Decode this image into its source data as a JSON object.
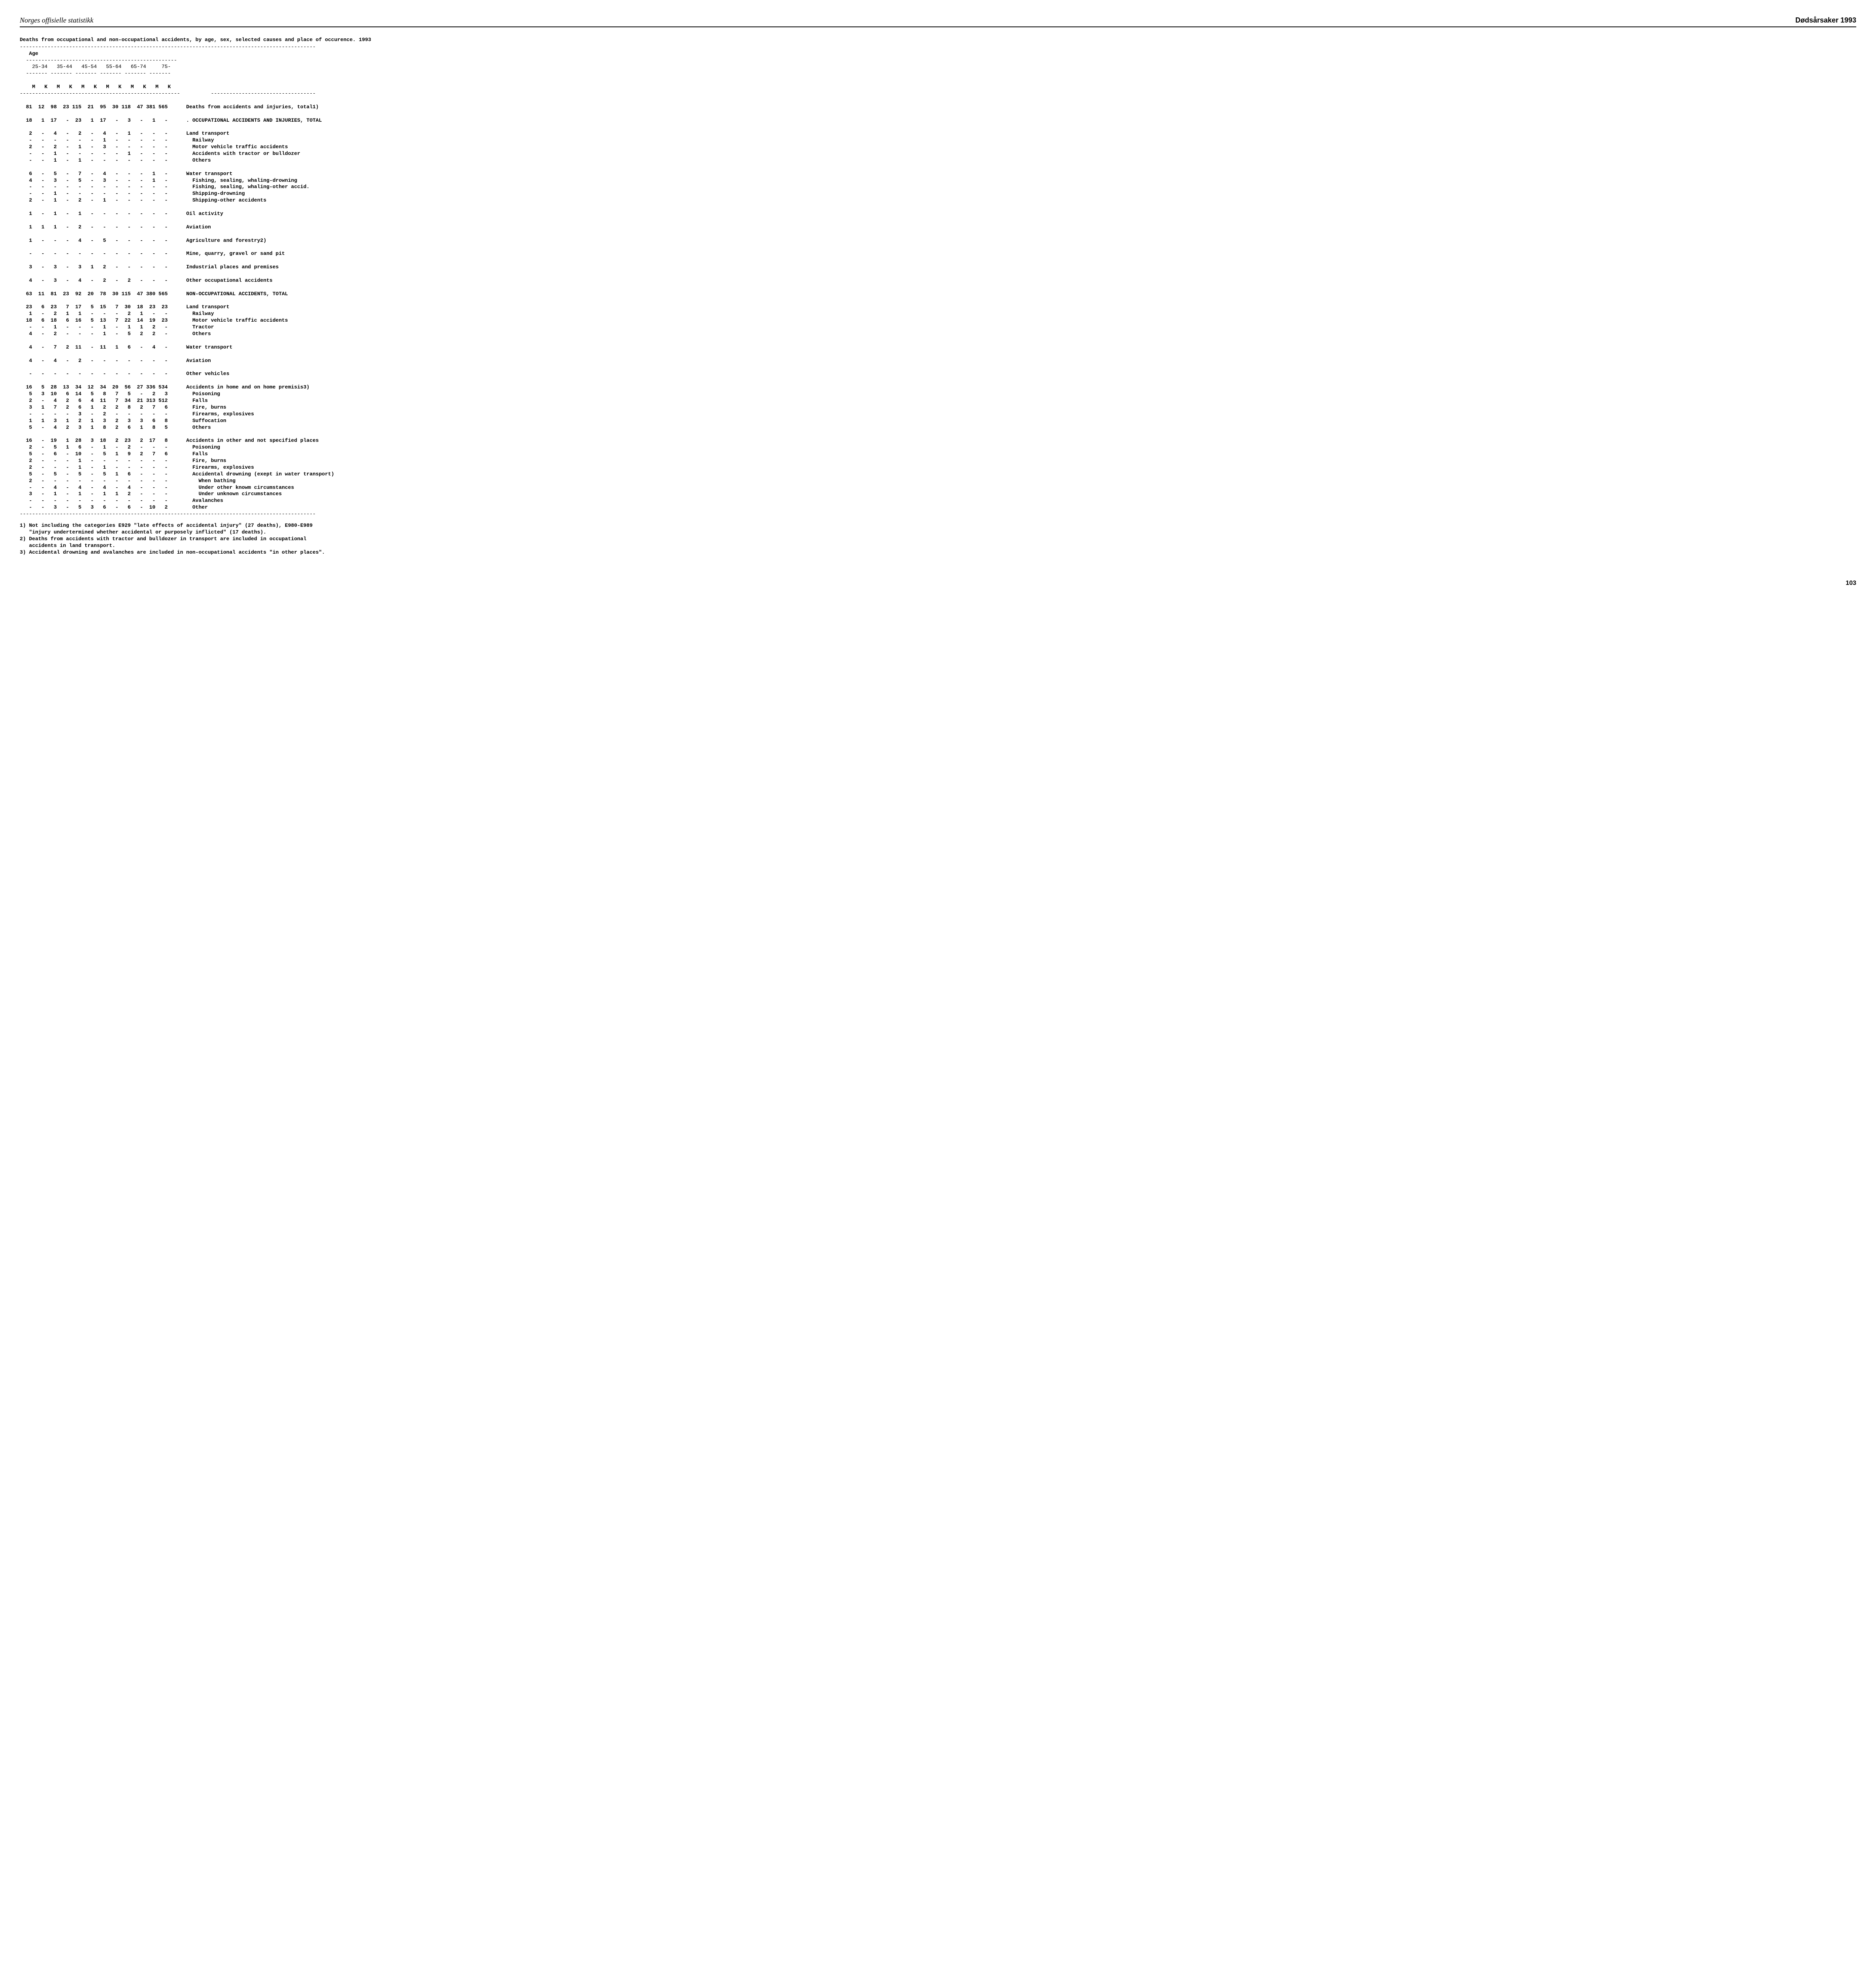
{
  "header": {
    "left": "Norges offisielle statistikk",
    "right": "Dødsårsaker 1993"
  },
  "title": "Deaths from occupational and non-occupational accidents, by age, sex, selected causes and place of occurence. 1993",
  "page_number": "103",
  "age_header": "Age",
  "age_groups": [
    "25-34",
    "35-44",
    "45-54",
    "55-64",
    "65-74",
    "75-"
  ],
  "sex_labels": [
    "M",
    "K",
    "M",
    "K",
    "M",
    "K",
    "M",
    "K",
    "M",
    "K",
    "M",
    "K"
  ],
  "rows": [
    {
      "v": [
        "81",
        "12",
        "98",
        "23",
        "115",
        "21",
        "95",
        "30",
        "118",
        "47",
        "381",
        "565"
      ],
      "label": "Deaths from accidents and injuries, total1)"
    },
    {
      "v": [
        "18",
        "1",
        "17",
        "-",
        "23",
        "1",
        "17",
        "-",
        "3",
        "-",
        "1",
        "-"
      ],
      "label": ". OCCUPATIONAL ACCIDENTS AND INJURIES, TOTAL"
    },
    {
      "v": [
        "2",
        "-",
        "4",
        "-",
        "2",
        "-",
        "4",
        "-",
        "1",
        "-",
        "-",
        "-"
      ],
      "label": "Land transport"
    },
    {
      "v": [
        "-",
        "-",
        "-",
        "-",
        "-",
        "-",
        "1",
        "-",
        "-",
        "-",
        "-",
        "-"
      ],
      "label": "  Railway"
    },
    {
      "v": [
        "2",
        "-",
        "2",
        "-",
        "1",
        "-",
        "3",
        "-",
        "-",
        "-",
        "-",
        "-"
      ],
      "label": "  Motor vehicle traffic accidents"
    },
    {
      "v": [
        "-",
        "-",
        "1",
        "-",
        "-",
        "-",
        "-",
        "-",
        "1",
        "-",
        "-",
        "-"
      ],
      "label": "  Accidents with tractor or bulldozer"
    },
    {
      "v": [
        "-",
        "-",
        "1",
        "-",
        "1",
        "-",
        "-",
        "-",
        "-",
        "-",
        "-",
        "-"
      ],
      "label": "  Others"
    },
    {
      "v": [
        "6",
        "-",
        "5",
        "-",
        "7",
        "-",
        "4",
        "-",
        "-",
        "-",
        "1",
        "-"
      ],
      "label": "Water transport"
    },
    {
      "v": [
        "4",
        "-",
        "3",
        "-",
        "5",
        "-",
        "3",
        "-",
        "-",
        "-",
        "1",
        "-"
      ],
      "label": "  Fishing, sealing, whaling-drowning"
    },
    {
      "v": [
        "-",
        "-",
        "-",
        "-",
        "-",
        "-",
        "-",
        "-",
        "-",
        "-",
        "-",
        "-"
      ],
      "label": "  Fishing, sealing, whaling-other accid."
    },
    {
      "v": [
        "-",
        "-",
        "1",
        "-",
        "-",
        "-",
        "-",
        "-",
        "-",
        "-",
        "-",
        "-"
      ],
      "label": "  Shipping-drowning"
    },
    {
      "v": [
        "2",
        "-",
        "1",
        "-",
        "2",
        "-",
        "1",
        "-",
        "-",
        "-",
        "-",
        "-"
      ],
      "label": "  Shipping-other accidents"
    },
    {
      "v": [
        "1",
        "-",
        "1",
        "-",
        "1",
        "-",
        "-",
        "-",
        "-",
        "-",
        "-",
        "-"
      ],
      "label": "Oil activity"
    },
    {
      "v": [
        "1",
        "1",
        "1",
        "-",
        "2",
        "-",
        "-",
        "-",
        "-",
        "-",
        "-",
        "-"
      ],
      "label": "Aviation"
    },
    {
      "v": [
        "1",
        "-",
        "-",
        "-",
        "4",
        "-",
        "5",
        "-",
        "-",
        "-",
        "-",
        "-"
      ],
      "label": "Agriculture and forestry2)"
    },
    {
      "v": [
        "-",
        "-",
        "-",
        "-",
        "-",
        "-",
        "-",
        "-",
        "-",
        "-",
        "-",
        "-"
      ],
      "label": "Mine, quarry, gravel or sand pit"
    },
    {
      "v": [
        "3",
        "-",
        "3",
        "-",
        "3",
        "1",
        "2",
        "-",
        "-",
        "-",
        "-",
        "-"
      ],
      "label": "Industrial places and premises"
    },
    {
      "v": [
        "4",
        "-",
        "3",
        "-",
        "4",
        "-",
        "2",
        "-",
        "2",
        "-",
        "-",
        "-"
      ],
      "label": "Other occupational accidents"
    },
    {
      "v": [
        "63",
        "11",
        "81",
        "23",
        "92",
        "20",
        "78",
        "30",
        "115",
        "47",
        "380",
        "565"
      ],
      "label": "NON-OCCUPATIONAL ACCIDENTS, TOTAL"
    },
    {
      "v": [
        "23",
        "6",
        "23",
        "7",
        "17",
        "5",
        "15",
        "7",
        "30",
        "18",
        "23",
        "23"
      ],
      "label": "Land transport"
    },
    {
      "v": [
        "1",
        "-",
        "2",
        "1",
        "1",
        "-",
        "-",
        "-",
        "2",
        "1",
        "-",
        "-"
      ],
      "label": "  Railway"
    },
    {
      "v": [
        "18",
        "6",
        "18",
        "6",
        "16",
        "5",
        "13",
        "7",
        "22",
        "14",
        "19",
        "23"
      ],
      "label": "  Motor vehicle traffic accidents"
    },
    {
      "v": [
        "-",
        "-",
        "1",
        "-",
        "-",
        "-",
        "1",
        "-",
        "1",
        "1",
        "2",
        "-"
      ],
      "label": "  Tractor"
    },
    {
      "v": [
        "4",
        "-",
        "2",
        "-",
        "-",
        "-",
        "1",
        "-",
        "5",
        "2",
        "2",
        "-"
      ],
      "label": "  Others"
    },
    {
      "v": [
        "4",
        "-",
        "7",
        "2",
        "11",
        "-",
        "11",
        "1",
        "6",
        "-",
        "4",
        "-"
      ],
      "label": "Water transport"
    },
    {
      "v": [
        "4",
        "-",
        "4",
        "-",
        "2",
        "-",
        "-",
        "-",
        "-",
        "-",
        "-",
        "-"
      ],
      "label": "Aviation"
    },
    {
      "v": [
        "-",
        "-",
        "-",
        "-",
        "-",
        "-",
        "-",
        "-",
        "-",
        "-",
        "-",
        "-"
      ],
      "label": "Other vehicles"
    },
    {
      "v": [
        "16",
        "5",
        "28",
        "13",
        "34",
        "12",
        "34",
        "20",
        "56",
        "27",
        "336",
        "534"
      ],
      "label": "Accidents in home and on home premisis3)"
    },
    {
      "v": [
        "5",
        "3",
        "10",
        "6",
        "14",
        "5",
        "8",
        "7",
        "5",
        "-",
        "2",
        "3"
      ],
      "label": "  Poisoning"
    },
    {
      "v": [
        "2",
        "-",
        "4",
        "2",
        "6",
        "4",
        "11",
        "7",
        "34",
        "21",
        "313",
        "512"
      ],
      "label": "  Falls"
    },
    {
      "v": [
        "3",
        "1",
        "7",
        "2",
        "6",
        "1",
        "2",
        "2",
        "8",
        "2",
        "7",
        "6"
      ],
      "label": "  Fire, burns"
    },
    {
      "v": [
        "-",
        "-",
        "-",
        "-",
        "3",
        "-",
        "2",
        "-",
        "-",
        "-",
        "-",
        "-"
      ],
      "label": "  Firearms, explosives"
    },
    {
      "v": [
        "1",
        "1",
        "3",
        "1",
        "2",
        "1",
        "3",
        "2",
        "3",
        "3",
        "6",
        "8"
      ],
      "label": "  Suffocation"
    },
    {
      "v": [
        "5",
        "-",
        "4",
        "2",
        "3",
        "1",
        "8",
        "2",
        "6",
        "1",
        "8",
        "5"
      ],
      "label": "  Others"
    },
    {
      "v": [
        "16",
        "-",
        "19",
        "1",
        "28",
        "3",
        "18",
        "2",
        "23",
        "2",
        "17",
        "8"
      ],
      "label": "Accidents in other and not specified places"
    },
    {
      "v": [
        "2",
        "-",
        "5",
        "1",
        "6",
        "-",
        "1",
        "-",
        "2",
        "-",
        "-",
        "-"
      ],
      "label": "  Poisoning"
    },
    {
      "v": [
        "5",
        "-",
        "6",
        "-",
        "10",
        "-",
        "5",
        "1",
        "9",
        "2",
        "7",
        "6"
      ],
      "label": "  Falls"
    },
    {
      "v": [
        "2",
        "-",
        "-",
        "-",
        "1",
        "-",
        "-",
        "-",
        "-",
        "-",
        "-",
        "-"
      ],
      "label": "  Fire, burns"
    },
    {
      "v": [
        "2",
        "-",
        "-",
        "-",
        "1",
        "-",
        "1",
        "-",
        "-",
        "-",
        "-",
        "-"
      ],
      "label": "  Firearms, explosives"
    },
    {
      "v": [
        "5",
        "-",
        "5",
        "-",
        "5",
        "-",
        "5",
        "1",
        "6",
        "-",
        "-",
        "-"
      ],
      "label": "  Accidental drowning (exept in water transport)"
    },
    {
      "v": [
        "2",
        "-",
        "-",
        "-",
        "-",
        "-",
        "-",
        "-",
        "-",
        "-",
        "-",
        "-"
      ],
      "label": "    When bathing"
    },
    {
      "v": [
        "-",
        "-",
        "4",
        "-",
        "4",
        "-",
        "4",
        "-",
        "4",
        "-",
        "-",
        "-"
      ],
      "label": "    Under other knowm circumstances"
    },
    {
      "v": [
        "3",
        "-",
        "1",
        "-",
        "1",
        "-",
        "1",
        "1",
        "2",
        "-",
        "-",
        "-"
      ],
      "label": "    Under unknown circumstances"
    },
    {
      "v": [
        "-",
        "-",
        "-",
        "-",
        "-",
        "-",
        "-",
        "-",
        "-",
        "-",
        "-",
        "-"
      ],
      "label": "  Avalanches"
    },
    {
      "v": [
        "-",
        "-",
        "3",
        "-",
        "5",
        "3",
        "6",
        "-",
        "6",
        "-",
        "10",
        "2"
      ],
      "label": "  Other"
    }
  ],
  "blank_after": [
    0,
    1,
    6,
    11,
    12,
    13,
    14,
    15,
    16,
    17,
    18,
    23,
    24,
    25,
    26,
    33
  ],
  "footnotes": [
    "1) Not including the categories E929 \"late effects of accidental injury\" (27 deaths), E980-E989",
    "   \"injury undertermined whether accidental or purposely inflicted\" (17 deaths).",
    "2) Deaths from accidents with tractor and bulldozer in transport are included in occupational",
    "   accidents in land transport.",
    "3) Accidental drowning and avalanches are included in non-occupational accidents \"in other places\"."
  ]
}
